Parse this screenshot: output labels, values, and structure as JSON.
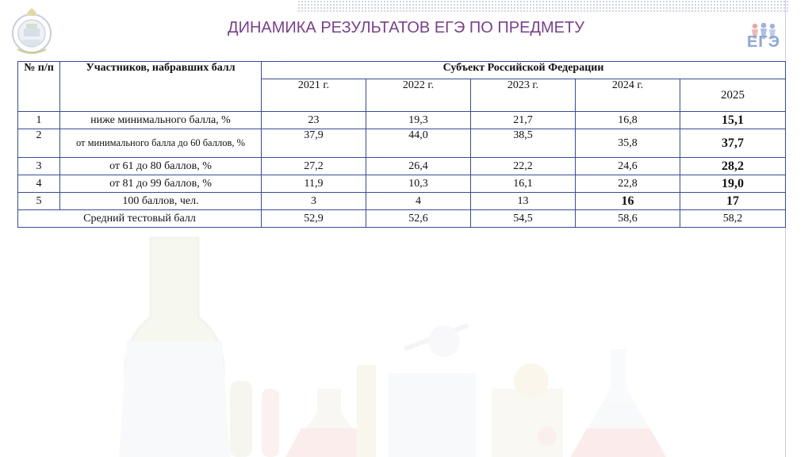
{
  "title": "ДИНАМИКА РЕЗУЛЬТАТОВ ЕГЭ ПО ПРЕДМЕТУ",
  "ege_logo": "ЕГЭ",
  "table": {
    "col_num": "№ п/п",
    "col_participants": "Участников, набравших балл",
    "col_region": "Субъект Российской Федерации",
    "years": [
      "2021 г.",
      "2022 г.",
      "2023 г.",
      "2024 г.",
      "2025"
    ],
    "rows": [
      {
        "num": "1",
        "label": "ниже минимального балла, %",
        "values": [
          "23",
          "19,3",
          "21,7",
          "16,8",
          "15,1"
        ]
      },
      {
        "num": "2",
        "label": "от минимального балла до 60 баллов, %",
        "values": [
          "37,9",
          "44,0",
          "38,5",
          "35,8",
          "37,7"
        ]
      },
      {
        "num": "3",
        "label": "от 61 до 80 баллов, %",
        "values": [
          "27,2",
          "26,4",
          "22,2",
          "24,6",
          "28,2"
        ]
      },
      {
        "num": "4",
        "label": "от 81 до 99 баллов, %",
        "values": [
          "11,9",
          "10,3",
          "16,1",
          "22,8",
          "19,0"
        ]
      },
      {
        "num": "5",
        "label": "100 баллов, чел.",
        "values": [
          "3",
          "4",
          "13",
          "16",
          "17"
        ]
      }
    ],
    "avg_label": "Средний тестовый балл",
    "avg_values": [
      "52,9",
      "52,6",
      "54,5",
      "58,6",
      "58,2"
    ]
  }
}
